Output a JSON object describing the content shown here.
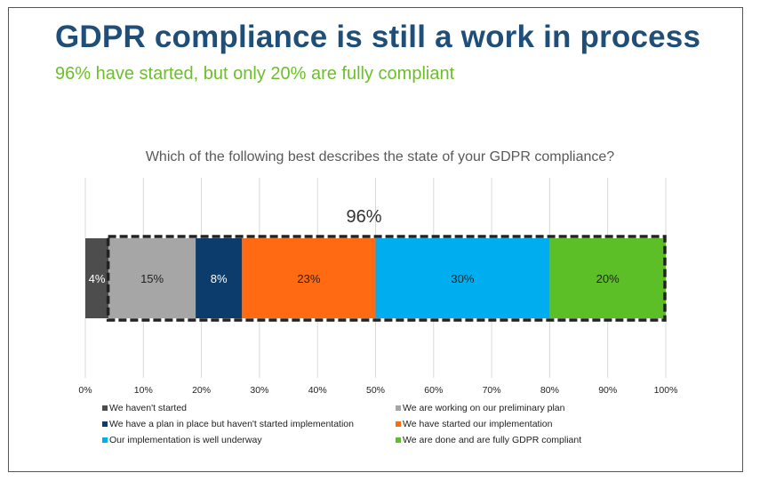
{
  "title": "GDPR compliance is still a work in process",
  "subtitle": "96% have started, but only 20% are fully compliant",
  "chart_data": {
    "type": "bar",
    "orientation": "horizontal-stacked",
    "title": "Which of the following best describes the state of your GDPR compliance?",
    "xlim": [
      0,
      100
    ],
    "x_ticks": [
      "0%",
      "10%",
      "20%",
      "30%",
      "40%",
      "50%",
      "60%",
      "70%",
      "80%",
      "90%",
      "100%"
    ],
    "tick_values": [
      0,
      10,
      20,
      30,
      40,
      50,
      60,
      70,
      80,
      90,
      100
    ],
    "series": [
      {
        "name": "We haven't started",
        "value": 4,
        "label": "4%",
        "color": "#4d4d4d",
        "label_color": "#ffffff"
      },
      {
        "name": "We are working on our preliminary plan",
        "value": 15,
        "label": "15%",
        "color": "#a6a6a6",
        "label_color": "#222222"
      },
      {
        "name": "We have a plan in place but haven't started implementation",
        "value": 8,
        "label": "8%",
        "color": "#0b3c6b",
        "label_color": "#ffffff"
      },
      {
        "name": "We have started our implementation",
        "value": 23,
        "label": "23%",
        "color": "#ff6a13",
        "label_color": "#222222"
      },
      {
        "name": "Our implementation is well underway",
        "value": 30,
        "label": "30%",
        "color": "#00aeef",
        "label_color": "#222222"
      },
      {
        "name": "We are done and are fully GDPR compliant",
        "value": 20,
        "label": "20%",
        "color": "#5cbf28",
        "label_color": "#222222"
      }
    ],
    "annotation": {
      "text": "96%",
      "from": 4,
      "to": 100
    },
    "grid": true,
    "legend_position": "bottom"
  }
}
